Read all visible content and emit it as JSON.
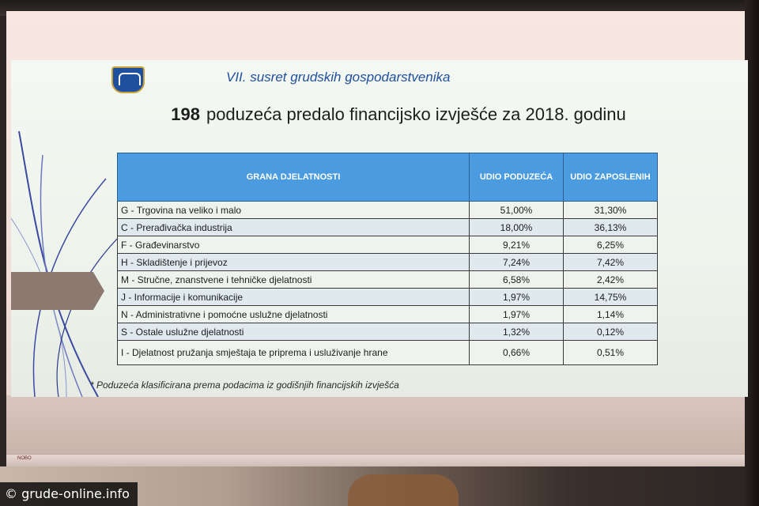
{
  "slide": {
    "header_title": "VII. susret grudskih gospodarstvenika",
    "title_number": "198",
    "title_text": "poduzeća predalo financijsko izvješće za 2018. godinu",
    "table": {
      "headers": [
        "GRANA DJELATNOSTI",
        "UDIO PODUZEĆA",
        "UDIO ZAPOSLENIH"
      ],
      "rows": [
        {
          "name": "G - Trgovina na veliko i malo",
          "udio_poduzeca": "51,00%",
          "udio_zaposlenih": "31,30%"
        },
        {
          "name": "C - Prerađivačka industrija",
          "udio_poduzeca": "18,00%",
          "udio_zaposlenih": "36,13%"
        },
        {
          "name": "F - Građevinarstvo",
          "udio_poduzeca": "9,21%",
          "udio_zaposlenih": "6,25%"
        },
        {
          "name": "H - Skladištenje i prijevoz",
          "udio_poduzeca": "7,24%",
          "udio_zaposlenih": "7,42%"
        },
        {
          "name": "M - Stručne, znanstvene i tehničke djelatnosti",
          "udio_poduzeca": "6,58%",
          "udio_zaposlenih": "2,42%"
        },
        {
          "name": "J - Informacije i komunikacije",
          "udio_poduzeca": "1,97%",
          "udio_zaposlenih": "14,75%"
        },
        {
          "name": "N - Administrativne i pomoćne uslužne djelatnosti",
          "udio_poduzeca": "1,97%",
          "udio_zaposlenih": "1,14%"
        },
        {
          "name": "S - Ostale uslužne djelatnosti",
          "udio_poduzeca": "1,32%",
          "udio_zaposlenih": "0,12%"
        },
        {
          "name": "I - Djelatnost pružanja smještaja te priprema i usluživanje hrane",
          "udio_poduzeca": "0,66%",
          "udio_zaposlenih": "0,51%"
        }
      ]
    },
    "footnote": "* Poduzeća klasificirana prema podacima iz godišnjih financijskih izvješća"
  },
  "watermark": "© grude-online.info",
  "colors": {
    "header_blue": "#4a9be0",
    "title_blue": "#1f4f9f"
  }
}
